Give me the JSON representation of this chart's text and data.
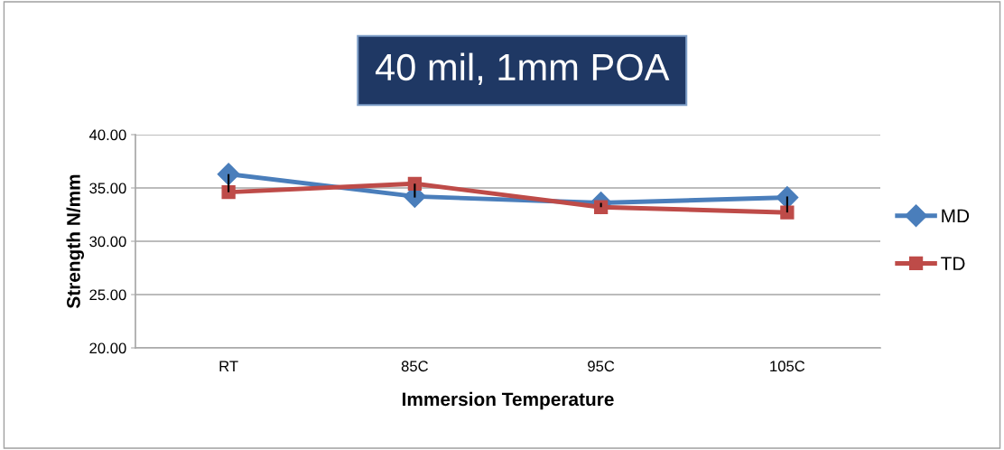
{
  "chart_data": {
    "type": "line",
    "title": "40 mil, 1mm POA",
    "xlabel": "Immersion Temperature",
    "ylabel": "Strength N/mm",
    "categories": [
      "RT",
      "85C",
      "95C",
      "105C"
    ],
    "series": [
      {
        "name": "MD",
        "color": "#4a7ebb",
        "marker": "diamond",
        "values": [
          36.3,
          34.2,
          33.6,
          34.1
        ],
        "errors": [
          [
            34.6,
            36.3
          ],
          [
            34.1,
            35.4
          ],
          [
            33.2,
            33.6
          ],
          [
            32.7,
            34.2
          ]
        ]
      },
      {
        "name": "TD",
        "color": "#be4b48",
        "marker": "square",
        "values": [
          34.6,
          35.4,
          33.2,
          32.7
        ]
      }
    ],
    "ylim": [
      20,
      40
    ],
    "yticks": [
      {
        "value": 20,
        "label": "20.00"
      },
      {
        "value": 25,
        "label": "25.00"
      },
      {
        "value": 30,
        "label": "30.00"
      },
      {
        "value": 35,
        "label": "35.00"
      },
      {
        "value": 40,
        "label": "40.00"
      }
    ],
    "grid": "y",
    "legend": "right",
    "line_style": "solid"
  }
}
